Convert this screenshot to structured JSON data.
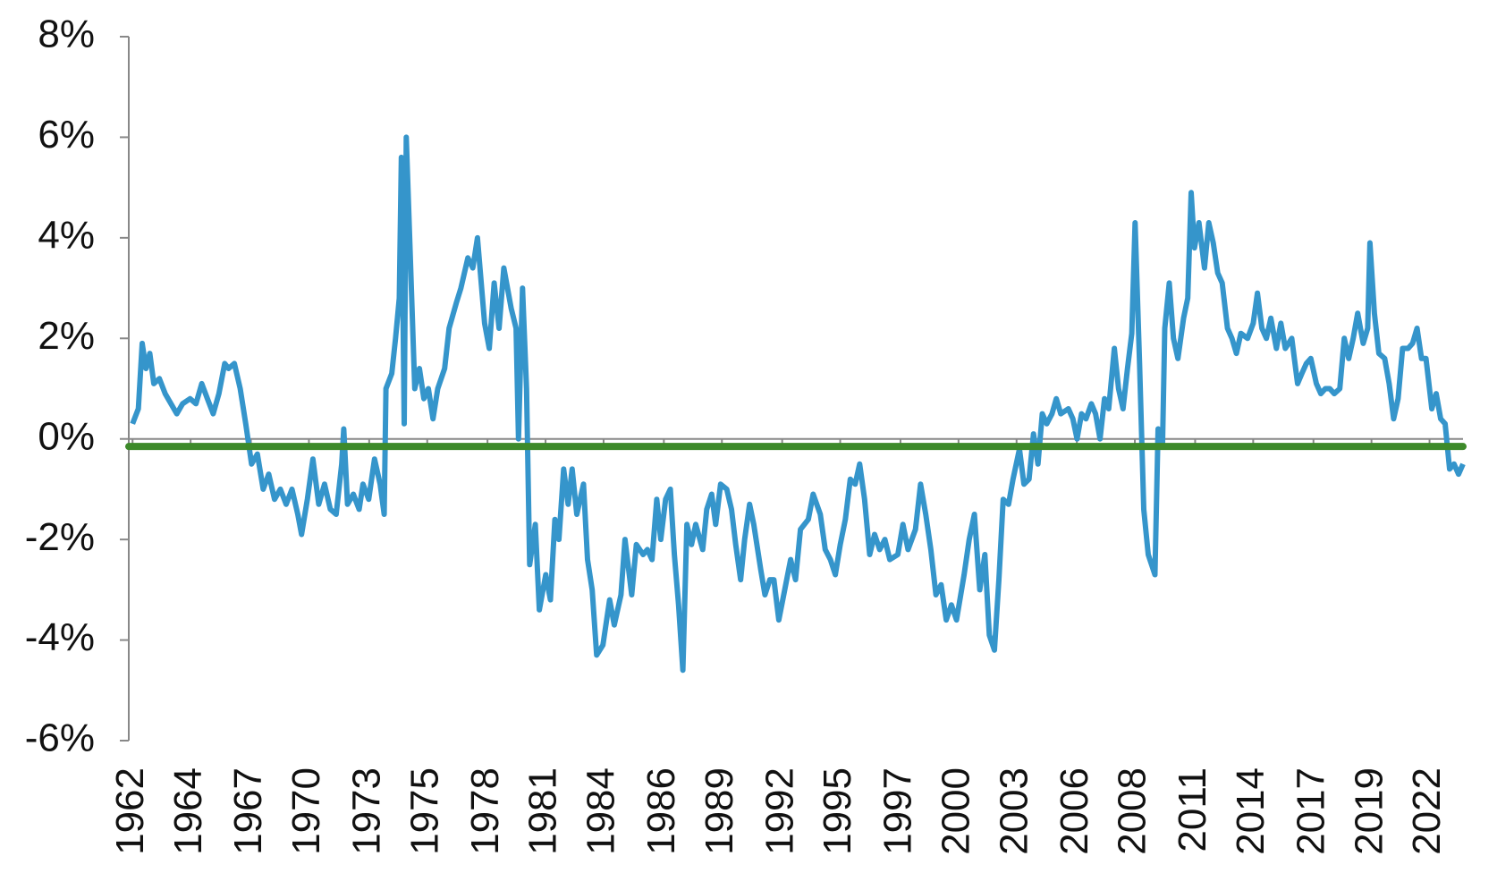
{
  "chart_data": {
    "type": "line",
    "color": "#3595cb",
    "hline": {
      "value": -0.15,
      "color": "#3d8a2a"
    },
    "xlim": [
      1961.83,
      2021.6
    ],
    "ylim": [
      -6,
      8
    ],
    "yticks": [
      {
        "value": -6,
        "label": "-6%"
      },
      {
        "value": -4,
        "label": "-4%"
      },
      {
        "value": -2,
        "label": "-2%"
      },
      {
        "value": 0,
        "label": "0%"
      },
      {
        "value": 2,
        "label": "2%"
      },
      {
        "value": 4,
        "label": "4%"
      },
      {
        "value": 6,
        "label": "6%"
      },
      {
        "value": 8,
        "label": "8%"
      }
    ],
    "xticks": [
      1962,
      {
        "value": 1964.6,
        "label": "1964"
      },
      {
        "value": 1967.3,
        "label": "1967"
      },
      {
        "value": 1969.9,
        "label": "1970"
      },
      {
        "value": 1972.6,
        "label": "1973"
      },
      {
        "value": 1975.2,
        "label": "1975"
      },
      {
        "value": 1977.9,
        "label": "1978"
      },
      {
        "value": 1980.5,
        "label": "1981"
      },
      {
        "value": 1983.1,
        "label": "1984"
      },
      {
        "value": 1985.8,
        "label": "1986"
      },
      {
        "value": 1988.4,
        "label": "1989"
      },
      {
        "value": 1991.1,
        "label": "1992"
      },
      {
        "value": 1993.7,
        "label": "1995"
      },
      {
        "value": 1996.4,
        "label": "1997"
      },
      {
        "value": 1999.0,
        "label": "2000"
      },
      {
        "value": 2001.6,
        "label": "2003"
      },
      {
        "value": 2004.3,
        "label": "2006"
      },
      {
        "value": 2006.9,
        "label": "2008"
      },
      {
        "value": 2009.6,
        "label": "2011"
      },
      {
        "value": 2012.2,
        "label": "2014"
      },
      {
        "value": 2014.9,
        "label": "2017"
      },
      {
        "value": 2017.5,
        "label": "2019"
      },
      {
        "value": 2020.1,
        "label": "2022"
      }
    ],
    "x": [
      1962.0,
      1962.26,
      1962.43,
      1962.6,
      1962.77,
      1962.95,
      1963.2,
      1963.46,
      1963.72,
      1963.98,
      1964.24,
      1964.58,
      1964.84,
      1965.1,
      1965.35,
      1965.61,
      1965.87,
      1966.13,
      1966.3,
      1966.56,
      1966.82,
      1967.07,
      1967.33,
      1967.59,
      1967.85,
      1968.1,
      1968.36,
      1968.62,
      1968.88,
      1969.14,
      1969.4,
      1969.57,
      1969.83,
      1970.08,
      1970.34,
      1970.6,
      1970.86,
      1971.12,
      1971.37,
      1971.46,
      1971.63,
      1971.89,
      1972.15,
      1972.32,
      1972.58,
      1972.84,
      1973.09,
      1973.27,
      1973.35,
      1973.61,
      1973.78,
      1973.95,
      1974.04,
      1974.17,
      1974.26,
      1974.49,
      1974.64,
      1974.85,
      1975.05,
      1975.25,
      1975.46,
      1975.67,
      1975.98,
      1976.18,
      1976.5,
      1976.71,
      1977.02,
      1977.24,
      1977.45,
      1977.77,
      1977.98,
      1978.2,
      1978.42,
      1978.63,
      1978.96,
      1979.18,
      1979.29,
      1979.47,
      1979.65,
      1979.79,
      1980.04,
      1980.22,
      1980.51,
      1980.72,
      1980.92,
      1981.1,
      1981.31,
      1981.51,
      1981.69,
      1981.9,
      1982.2,
      1982.38,
      1982.59,
      1982.79,
      1983.07,
      1983.37,
      1983.58,
      1983.88,
      1984.06,
      1984.36,
      1984.57,
      1984.87,
      1985.06,
      1985.27,
      1985.48,
      1985.66,
      1985.88,
      1986.09,
      1986.27,
      1986.46,
      1986.65,
      1986.83,
      1987.04,
      1987.23,
      1987.54,
      1987.72,
      1987.94,
      1988.12,
      1988.34,
      1988.62,
      1988.83,
      1989.02,
      1989.24,
      1989.42,
      1989.64,
      1989.83,
      1990.14,
      1990.33,
      1990.55,
      1990.73,
      1990.95,
      1991.17,
      1991.48,
      1991.7,
      1991.92,
      1992.27,
      1992.49,
      1992.81,
      1993.03,
      1993.26,
      1993.48,
      1993.7,
      1993.93,
      1994.15,
      1994.37,
      1994.57,
      1994.79,
      1995.02,
      1995.24,
      1995.47,
      1995.7,
      1995.92,
      1996.28,
      1996.51,
      1996.74,
      1997.07,
      1997.3,
      1997.53,
      1997.76,
      1997.99,
      1998.22,
      1998.45,
      1998.68,
      1998.91,
      1999.25,
      1999.48,
      1999.71,
      1999.95,
      2000.18,
      2000.38,
      2000.61,
      2000.81,
      2001.0,
      2001.24,
      2001.44,
      2001.73,
      2001.93,
      2002.16,
      2002.36,
      2002.56,
      2002.75,
      2002.95,
      2003.19,
      2003.38,
      2003.58,
      2003.92,
      2004.12,
      2004.31,
      2004.51,
      2004.71,
      2004.95,
      2005.14,
      2005.34,
      2005.54,
      2005.73,
      2005.98,
      2006.17,
      2006.37,
      2006.57,
      2006.76,
      2006.91,
      2007.11,
      2007.3,
      2007.5,
      2007.8,
      2007.94,
      2008.14,
      2008.24,
      2008.44,
      2008.63,
      2008.83,
      2009.08,
      2009.27,
      2009.42,
      2009.57,
      2009.77,
      2010.02,
      2010.21,
      2010.41,
      2010.61,
      2010.81,
      2011.05,
      2011.25,
      2011.45,
      2011.65,
      2011.95,
      2012.2,
      2012.39,
      2012.59,
      2012.79,
      2012.99,
      2013.24,
      2013.44,
      2013.64,
      2013.93,
      2014.19,
      2014.38,
      2014.58,
      2014.78,
      2015.03,
      2015.23,
      2015.43,
      2015.63,
      2015.83,
      2016.08,
      2016.28,
      2016.48,
      2016.68,
      2016.88,
      2017.13,
      2017.33,
      2017.43,
      2017.63,
      2017.83,
      2018.09,
      2018.29,
      2018.49,
      2018.69,
      2018.89,
      2019.14,
      2019.34,
      2019.54,
      2019.74,
      2019.94,
      2020.2,
      2020.4,
      2020.6,
      2020.8,
      2021.0,
      2021.2,
      2021.4,
      2021.6
    ],
    "values": [
      0.3,
      0.6,
      1.9,
      1.4,
      1.7,
      1.1,
      1.2,
      0.9,
      0.7,
      0.5,
      0.7,
      0.8,
      0.7,
      1.1,
      0.8,
      0.5,
      0.9,
      1.5,
      1.4,
      1.5,
      1.0,
      0.3,
      -0.5,
      -0.3,
      -1.0,
      -0.7,
      -1.2,
      -1.0,
      -1.3,
      -1.0,
      -1.5,
      -1.9,
      -1.2,
      -0.4,
      -1.3,
      -0.9,
      -1.4,
      -1.5,
      -0.5,
      0.2,
      -1.3,
      -1.1,
      -1.4,
      -0.9,
      -1.2,
      -0.4,
      -0.9,
      -1.5,
      1.0,
      1.3,
      2.0,
      2.8,
      5.6,
      0.3,
      6.0,
      3.0,
      1.0,
      1.4,
      0.8,
      1.0,
      0.4,
      1.0,
      1.4,
      2.2,
      2.7,
      3.0,
      3.6,
      3.4,
      4.0,
      2.3,
      1.8,
      3.1,
      2.2,
      3.4,
      2.6,
      2.2,
      0.0,
      3.0,
      1.0,
      -2.5,
      -1.7,
      -3.4,
      -2.7,
      -3.2,
      -1.6,
      -2.0,
      -0.6,
      -1.3,
      -0.6,
      -1.5,
      -0.9,
      -2.4,
      -3.0,
      -4.3,
      -4.1,
      -3.2,
      -3.7,
      -3.1,
      -2.0,
      -3.1,
      -2.1,
      -2.3,
      -2.2,
      -2.4,
      -1.2,
      -2.0,
      -1.2,
      -1.0,
      -2.3,
      -3.3,
      -4.6,
      -1.7,
      -2.1,
      -1.7,
      -2.2,
      -1.4,
      -1.1,
      -1.7,
      -0.9,
      -1.0,
      -1.4,
      -2.1,
      -2.8,
      -2.0,
      -1.3,
      -1.7,
      -2.6,
      -3.1,
      -2.8,
      -2.8,
      -3.6,
      -3.1,
      -2.4,
      -2.8,
      -1.8,
      -1.6,
      -1.1,
      -1.5,
      -2.2,
      -2.4,
      -2.7,
      -2.1,
      -1.6,
      -0.8,
      -0.9,
      -0.5,
      -1.2,
      -2.3,
      -1.9,
      -2.2,
      -2.0,
      -2.4,
      -2.3,
      -1.7,
      -2.2,
      -1.8,
      -0.9,
      -1.5,
      -2.2,
      -3.1,
      -2.9,
      -3.6,
      -3.3,
      -3.6,
      -2.7,
      -2.0,
      -1.5,
      -3.0,
      -2.3,
      -3.9,
      -4.2,
      -2.8,
      -1.2,
      -1.3,
      -0.8,
      -0.2,
      -0.9,
      -0.8,
      0.1,
      -0.5,
      0.5,
      0.3,
      0.5,
      0.8,
      0.5,
      0.6,
      0.4,
      0.0,
      0.5,
      0.4,
      0.7,
      0.5,
      0.0,
      0.8,
      0.6,
      1.8,
      1.0,
      0.6,
      1.4,
      2.1,
      4.3,
      1.5,
      -1.4,
      -2.3,
      -2.7,
      0.2,
      -0.1,
      2.2,
      3.1,
      2.0,
      1.6,
      2.4,
      2.8,
      4.9,
      3.8,
      4.3,
      3.4,
      4.3,
      3.9,
      3.3,
      3.1,
      2.2,
      2.0,
      1.7,
      2.1,
      2.0,
      2.3,
      2.9,
      2.2,
      2.0,
      2.4,
      1.8,
      2.3,
      1.8,
      2.0,
      1.1,
      1.3,
      1.5,
      1.6,
      1.1,
      0.9,
      1.0,
      1.0,
      0.9,
      1.0,
      2.0,
      1.6,
      2.0,
      2.5,
      1.9,
      2.2,
      3.9,
      2.5,
      1.7,
      1.6,
      1.1,
      0.4,
      0.8,
      1.8,
      1.8,
      1.9,
      2.2,
      1.6,
      1.6,
      0.6,
      0.9,
      0.4,
      0.3,
      -0.6,
      -0.5,
      -0.7,
      -0.5
    ]
  }
}
